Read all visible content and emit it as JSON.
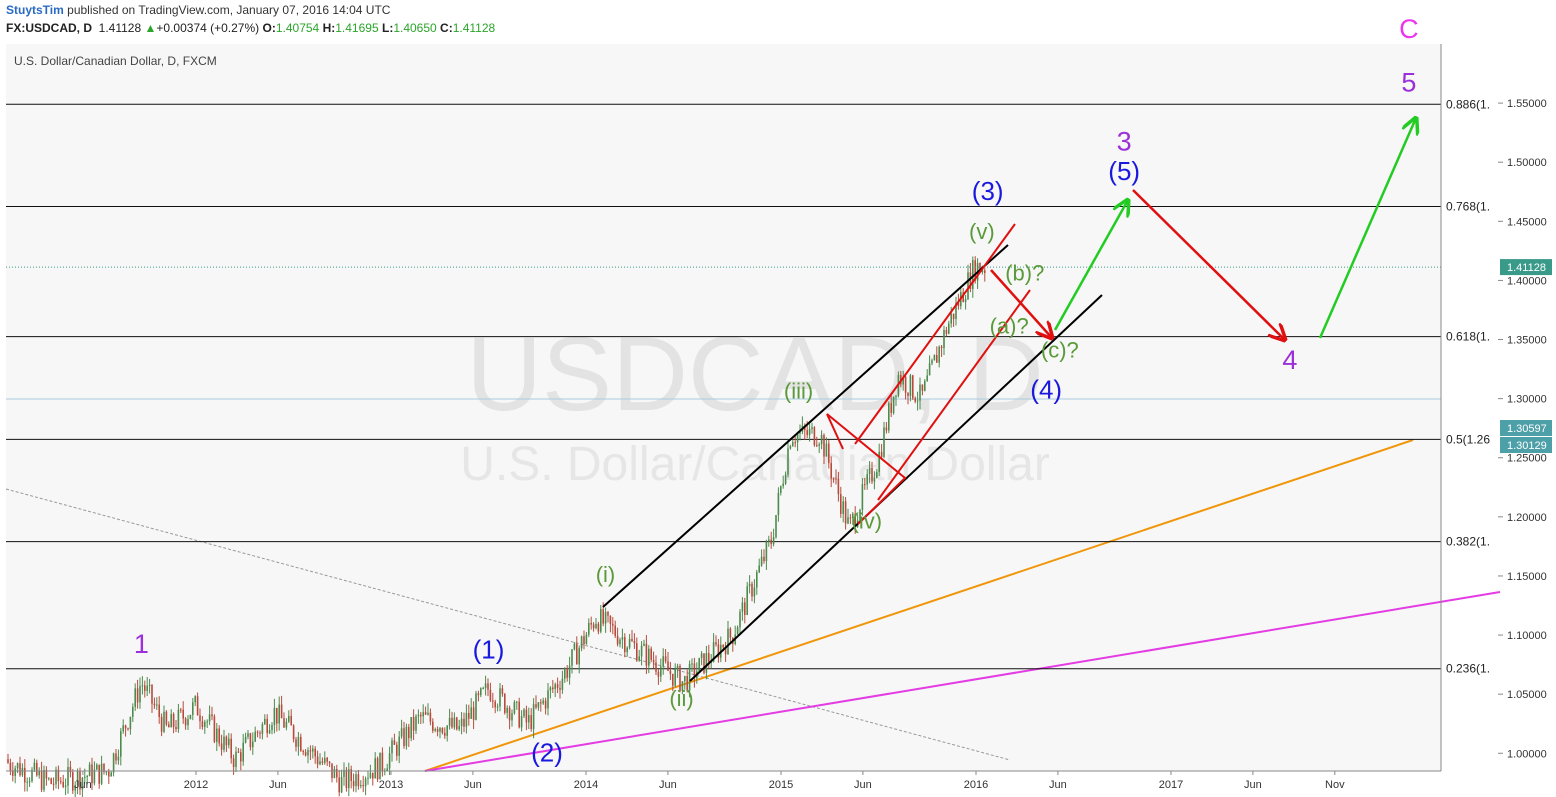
{
  "header": {
    "author": "StuytsTim",
    "published": "published on TradingView.com, January 07, 2016 14:04 UTC",
    "symbol": "FX:USDCAD, D",
    "last": "1.41128",
    "change": "+0.00374 (+0.27%)",
    "open_label": "O:",
    "open": "1.40754",
    "high_label": "H:",
    "high": "1.41695",
    "low_label": "L:",
    "low": "1.40650",
    "close_label": "C:",
    "close": "1.41128"
  },
  "chart_data": {
    "type": "candlestick",
    "title": "U.S. Dollar/Canadian Dollar, D, FXCM",
    "watermark_symbol": "USDCAD, D",
    "watermark_name": "U.S. Dollar/Canadian Dollar",
    "ylim": [
      0.985,
      1.6
    ],
    "y_ticks": [
      "1.00000",
      "1.05000",
      "1.10000",
      "1.15000",
      "1.20000",
      "1.25000",
      "1.30000",
      "1.35000",
      "1.40000",
      "1.45000",
      "1.50000",
      "1.55000"
    ],
    "x_ticks": [
      "Jun",
      "2012",
      "Jun",
      "2013",
      "Jun",
      "2014",
      "Jun",
      "2015",
      "Jun",
      "2016",
      "Jun",
      "2017",
      "Jun",
      "Nov"
    ],
    "x_tick_dates": [
      2011.42,
      2012.0,
      2012.42,
      2013.0,
      2013.42,
      2014.0,
      2014.42,
      2015.0,
      2015.42,
      2016.0,
      2016.42,
      2017.0,
      2017.42,
      2017.84
    ],
    "last_price": "1.41128",
    "price_tags": [
      "1.30597",
      "1.30129"
    ],
    "fib_levels": [
      {
        "label": "0.236(1.",
        "price": 1.0715
      },
      {
        "label": "0.382(1.",
        "price": 1.179
      },
      {
        "label": "0.5(1.26",
        "price": 1.2655
      },
      {
        "label": "0.618(1.",
        "price": 1.3525
      },
      {
        "label": "0.768(1.",
        "price": 1.4625
      },
      {
        "label": "0.886(1.",
        "price": 1.549
      }
    ],
    "price_path": [
      [
        2011.0,
        0.995
      ],
      [
        2011.25,
        0.975
      ],
      [
        2011.55,
        0.985
      ],
      [
        2011.72,
        1.06
      ],
      [
        2011.85,
        1.02
      ],
      [
        2012.0,
        1.04
      ],
      [
        2012.2,
        0.995
      ],
      [
        2012.4,
        1.035
      ],
      [
        2012.6,
        1.0
      ],
      [
        2012.75,
        0.975
      ],
      [
        2012.95,
        0.99
      ],
      [
        2013.15,
        1.03
      ],
      [
        2013.35,
        1.02
      ],
      [
        2013.5,
        1.055
      ],
      [
        2013.7,
        1.025
      ],
      [
        2013.9,
        1.07
      ],
      [
        2014.05,
        1.115
      ],
      [
        2014.25,
        1.09
      ],
      [
        2014.5,
        1.06
      ],
      [
        2014.75,
        1.1
      ],
      [
        2014.95,
        1.18
      ],
      [
        2015.05,
        1.27
      ],
      [
        2015.2,
        1.27
      ],
      [
        2015.35,
        1.19
      ],
      [
        2015.5,
        1.25
      ],
      [
        2015.6,
        1.32
      ],
      [
        2015.72,
        1.3
      ],
      [
        2015.85,
        1.36
      ],
      [
        2015.99,
        1.41
      ],
      [
        2016.0,
        1.41128
      ]
    ],
    "elliott_labels": [
      {
        "text": "1",
        "date": 2011.72,
        "price": 1.085,
        "color": "#9b30d9"
      },
      {
        "text": "(1)",
        "date": 2013.5,
        "price": 1.08,
        "color": "#1a1adf"
      },
      {
        "text": "(2)",
        "date": 2013.8,
        "price": 0.993,
        "color": "#1a1adf"
      },
      {
        "text": "(i)",
        "date": 2014.1,
        "price": 1.145,
        "color": "#5a9a3a"
      },
      {
        "text": "(ii)",
        "date": 2014.49,
        "price": 1.04,
        "color": "#5a9a3a"
      },
      {
        "text": "(iii)",
        "date": 2015.09,
        "price": 1.3,
        "color": "#5a9a3a"
      },
      {
        "text": "(iv)",
        "date": 2015.44,
        "price": 1.19,
        "color": "#5a9a3a"
      },
      {
        "text": "(v)",
        "date": 2016.03,
        "price": 1.435,
        "color": "#5a9a3a"
      },
      {
        "text": "(3)",
        "date": 2016.06,
        "price": 1.468,
        "color": "#1a1adf"
      },
      {
        "text": "(b)?",
        "date": 2016.25,
        "price": 1.4,
        "color": "#5a9a3a"
      },
      {
        "text": "(a)?",
        "date": 2016.17,
        "price": 1.355,
        "color": "#5a9a3a"
      },
      {
        "text": "(c)?",
        "date": 2016.43,
        "price": 1.335,
        "color": "#5a9a3a"
      },
      {
        "text": "(4)",
        "date": 2016.36,
        "price": 1.3,
        "color": "#1a1adf"
      },
      {
        "text": "3",
        "date": 2016.76,
        "price": 1.51,
        "color": "#9b30d9"
      },
      {
        "text": "(5)",
        "date": 2016.76,
        "price": 1.485,
        "color": "#1a1adf"
      },
      {
        "text": "4",
        "date": 2017.61,
        "price": 1.325,
        "color": "#9b30d9"
      },
      {
        "text": "C",
        "date": 2018.22,
        "price": 1.605,
        "color": "#ee33ee"
      },
      {
        "text": "5",
        "date": 2018.22,
        "price": 1.56,
        "color": "#9b30d9"
      }
    ]
  }
}
